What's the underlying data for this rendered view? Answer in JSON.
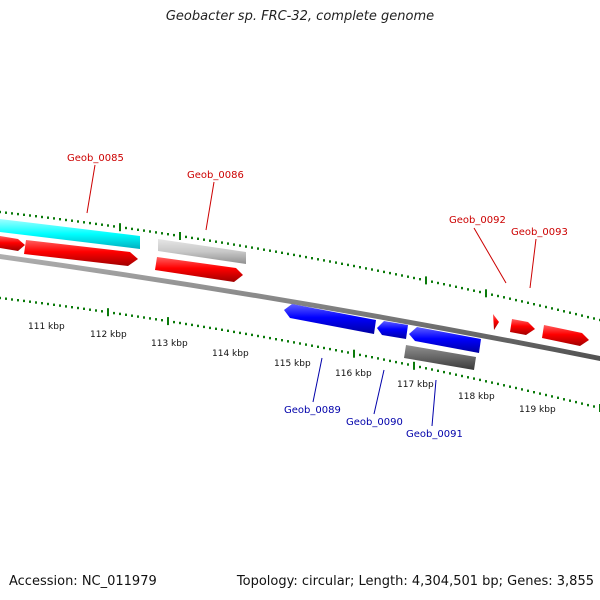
{
  "title": "Geobacter sp. FRC-32, complete genome",
  "footer": {
    "accession": "Accession: NC_011979",
    "summary": "Topology: circular; Length: 4,304,501 bp; Genes: 3,855"
  },
  "colors": {
    "forward_gene": "#ff0000",
    "reverse_gene": "#0000ff",
    "label_forward": "#cc0000",
    "label_reverse": "#0000aa",
    "cyan_feature": "#00ffff",
    "grey_feature": "#c8c8c8",
    "dark_feature": "#666666",
    "tick": "#0a7a0a",
    "backbone": "#808080"
  },
  "kbp_labels": [
    "111 kbp",
    "112 kbp",
    "113 kbp",
    "114 kbp",
    "115 kbp",
    "116 kbp",
    "117 kbp",
    "118 kbp",
    "119 kbp"
  ],
  "gene_labels": {
    "g85": "Geob_0085",
    "g86": "Geob_0086",
    "g89": "Geob_0089",
    "g90": "Geob_0090",
    "g91": "Geob_0091",
    "g92": "Geob_0092",
    "g93": "Geob_0093"
  }
}
